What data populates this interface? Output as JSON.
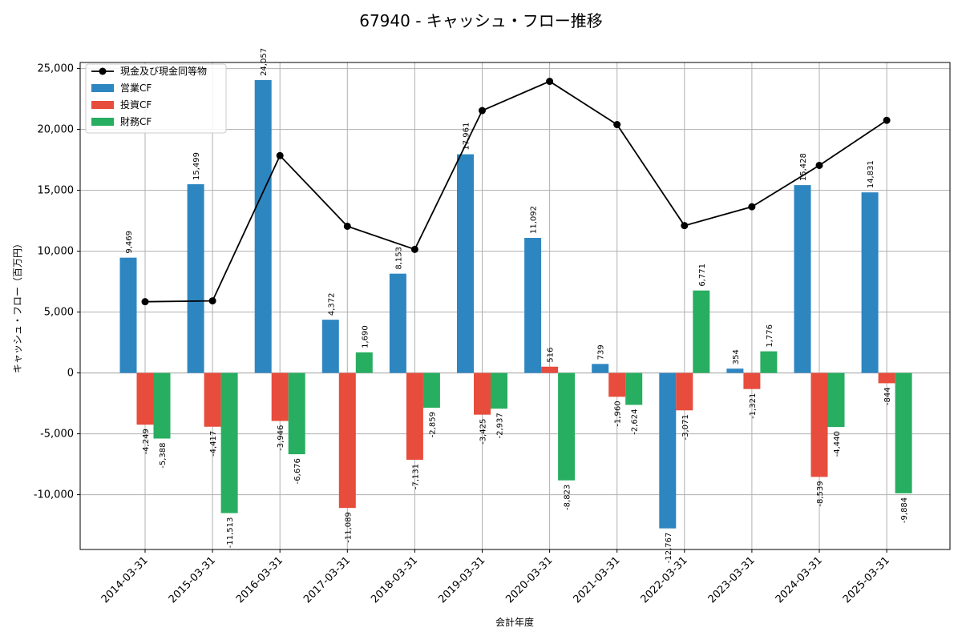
{
  "chart_data": {
    "type": "bar",
    "title": "67940 - キャッシュ・フロー推移",
    "xlabel": "会計年度",
    "ylabel": "キャッシュ・フロー（百万円）",
    "ylim": [
      -14500,
      25500
    ],
    "yticks": [
      -10000,
      -5000,
      0,
      5000,
      10000,
      15000,
      20000,
      25000
    ],
    "ytick_labels": [
      "-10,000",
      "-5,000",
      "0",
      "5,000",
      "10,000",
      "15,000",
      "20,000",
      "25,000"
    ],
    "grid": true,
    "legend_position": "top-left",
    "categories": [
      "2014-03-31",
      "2015-03-31",
      "2016-03-31",
      "2017-03-31",
      "2018-03-31",
      "2019-03-31",
      "2020-03-31",
      "2021-03-31",
      "2022-03-31",
      "2023-03-31",
      "2024-03-31",
      "2025-03-31"
    ],
    "series": [
      {
        "name": "営業CF",
        "type": "bar",
        "color": "#2e86c1",
        "values": [
          9469,
          15499,
          24057,
          4372,
          8153,
          17961,
          11092,
          739,
          -12767,
          354,
          15428,
          14831
        ],
        "labels": [
          "9,469",
          "15,499",
          "24,057",
          "4,372",
          "8,153",
          "17,961",
          "11,092",
          "739",
          "-12,767",
          "354",
          "15,428",
          "14,831"
        ]
      },
      {
        "name": "投資CF",
        "type": "bar",
        "color": "#e74c3c",
        "values": [
          -4249,
          -4417,
          -3946,
          -11089,
          -7131,
          -3425,
          516,
          -1960,
          -3071,
          -1321,
          -8539,
          -844
        ],
        "labels": [
          "-4,249",
          "-4,417",
          "-3,946",
          "-11,089",
          "-7,131",
          "-3,425",
          "516",
          "-1,960",
          "-3,071",
          "-1,321",
          "-8,539",
          "-844"
        ]
      },
      {
        "name": "財務CF",
        "type": "bar",
        "color": "#27ae60",
        "values": [
          -5388,
          -11513,
          -6676,
          1690,
          -2859,
          -2937,
          -8823,
          -2624,
          6771,
          1776,
          -4440,
          -9884
        ],
        "labels": [
          "-5,388",
          "-11,513",
          "-6,676",
          "1,690",
          "-2,859",
          "-2,937",
          "-8,823",
          "-2,624",
          "6,771",
          "1,776",
          "-4,440",
          "-9,884"
        ]
      },
      {
        "name": "現金及び現金同等物",
        "type": "line",
        "color": "#000000",
        "values": [
          5850,
          5920,
          17850,
          12050,
          10150,
          21550,
          23950,
          20400,
          12100,
          13650,
          17050,
          20750
        ]
      }
    ]
  }
}
